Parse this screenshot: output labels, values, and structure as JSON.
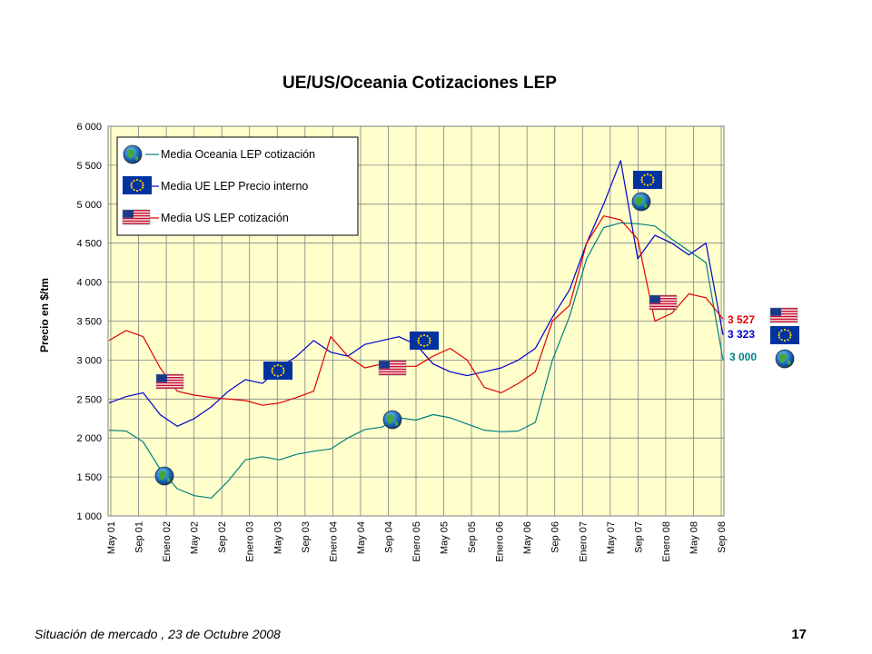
{
  "chart_data": {
    "type": "line",
    "title": "UE/US/Oceania  Cotizaciones  LEP",
    "ylabel": "Precio en $/tm",
    "xlabel": "",
    "ylim": [
      1000,
      6000
    ],
    "yticks": [
      "1 000",
      "1 500",
      "2 000",
      "2 500",
      "3 000",
      "3 500",
      "4 000",
      "4 500",
      "5 000",
      "5 500",
      "6 000"
    ],
    "x_tick_labels": [
      "May 01",
      "Sep 01",
      "Enero 02",
      "May 02",
      "Sep 02",
      "Enero 03",
      "May 03",
      "Sep 03",
      "Enero 04",
      "May 04",
      "Sep 04",
      "Enero 05",
      "May 05",
      "Sep 05",
      "Enero 06",
      "May 06",
      "Sep 06",
      "Enero 07",
      "May 07",
      "Sep 07",
      "Enero 08",
      "May 08",
      "Sep 08"
    ],
    "grid": true,
    "legend_position": "top-left",
    "series": [
      {
        "name": "Media Oceania LEP cotización",
        "color": "#008080",
        "icon": "globe-icon",
        "values": [
          2100,
          2090,
          1950,
          1600,
          1350,
          1260,
          1230,
          1450,
          1720,
          1760,
          1720,
          1790,
          1830,
          1860,
          2000,
          2110,
          2140,
          2260,
          2230,
          2300,
          2260,
          2180,
          2100,
          2080,
          2090,
          2200,
          3000,
          3560,
          4300,
          4700,
          4760,
          4750,
          4720,
          4550,
          4400,
          4250,
          3000
        ]
      },
      {
        "name": "Media UE LEP  Precio interno",
        "color": "#0000cc",
        "icon": "eu-flag-icon",
        "values": [
          2450,
          2530,
          2580,
          2300,
          2150,
          2250,
          2400,
          2600,
          2750,
          2700,
          2900,
          3050,
          3250,
          3100,
          3050,
          3200,
          3250,
          3300,
          3200,
          2950,
          2850,
          2800,
          2850,
          2900,
          3000,
          3150,
          3550,
          3900,
          4500,
          5000,
          5560,
          4300,
          4600,
          4500,
          4350,
          4500,
          3323
        ]
      },
      {
        "name": "Media US LEP cotización",
        "color": "#e00000",
        "icon": "us-flag-icon",
        "values": [
          3250,
          3380,
          3300,
          2900,
          2600,
          2550,
          2520,
          2500,
          2480,
          2420,
          2450,
          2520,
          2600,
          3300,
          3050,
          2900,
          2950,
          2920,
          2920,
          3050,
          3150,
          3000,
          2650,
          2580,
          2700,
          2850,
          3500,
          3700,
          4500,
          4850,
          4800,
          4550,
          3500,
          3600,
          3850,
          3800,
          3527
        ]
      }
    ],
    "end_labels": [
      {
        "text": "3 527",
        "color": "#e00000"
      },
      {
        "text": "3 323",
        "color": "#0000cc"
      },
      {
        "text": "3 000",
        "color": "#008080"
      }
    ]
  },
  "footer": {
    "left": "Situación de mercado , 23 de  Octubre 2008",
    "page_number": "17"
  }
}
